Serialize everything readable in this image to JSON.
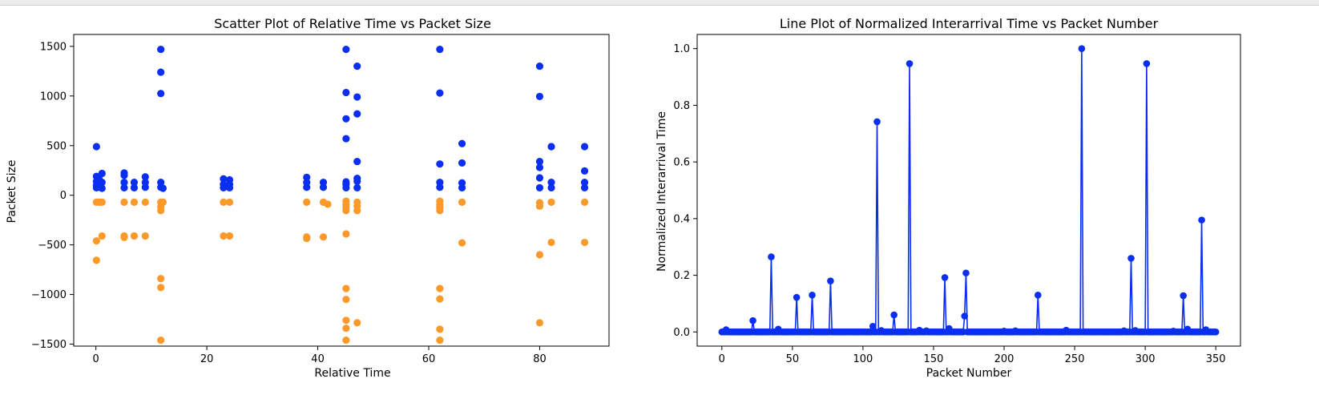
{
  "chart_data": [
    {
      "type": "scatter",
      "title": "Scatter Plot of Relative Time vs Packet Size",
      "xlabel": "Relative Time",
      "ylabel": "Packet Size",
      "xlim": [
        -4,
        92.5
      ],
      "ylim": [
        -1520,
        1620
      ],
      "xticks": [
        0,
        20,
        40,
        60,
        80
      ],
      "yticks": [
        -1500,
        -1000,
        -500,
        0,
        500,
        1000,
        1500
      ],
      "grid": false,
      "colors": {
        "positive": "#0a2ff0",
        "negative": "#fb9a2b"
      },
      "series": [
        {
          "color": "#0a2ff0",
          "points": [
            [
              0.1,
              490
            ],
            [
              0.1,
              190
            ],
            [
              0.1,
              140
            ],
            [
              0.1,
              100
            ],
            [
              0.1,
              75
            ],
            [
              0.6,
              160
            ],
            [
              0.6,
              80
            ],
            [
              1.1,
              220
            ],
            [
              1.1,
              130
            ],
            [
              1.1,
              70
            ],
            [
              5.1,
              225
            ],
            [
              5.1,
              200
            ],
            [
              5.1,
              130
            ],
            [
              5.1,
              75
            ],
            [
              6.9,
              130
            ],
            [
              6.9,
              75
            ],
            [
              8.9,
              185
            ],
            [
              8.9,
              130
            ],
            [
              8.9,
              80
            ],
            [
              11.7,
              1470
            ],
            [
              11.7,
              1240
            ],
            [
              11.7,
              1025
            ],
            [
              11.7,
              130
            ],
            [
              11.7,
              80
            ],
            [
              12.1,
              70
            ],
            [
              23.0,
              165
            ],
            [
              23.0,
              110
            ],
            [
              23.0,
              75
            ],
            [
              24.1,
              155
            ],
            [
              24.1,
              110
            ],
            [
              24.1,
              75
            ],
            [
              38.0,
              180
            ],
            [
              38.0,
              130
            ],
            [
              38.0,
              80
            ],
            [
              41.0,
              130
            ],
            [
              41.0,
              80
            ],
            [
              45.1,
              1470
            ],
            [
              45.1,
              1035
            ],
            [
              45.1,
              770
            ],
            [
              45.1,
              570
            ],
            [
              45.1,
              135
            ],
            [
              45.1,
              110
            ],
            [
              45.1,
              75
            ],
            [
              47.1,
              1300
            ],
            [
              47.1,
              990
            ],
            [
              47.1,
              820
            ],
            [
              47.1,
              340
            ],
            [
              47.1,
              170
            ],
            [
              47.1,
              140
            ],
            [
              47.1,
              75
            ],
            [
              62.0,
              1470
            ],
            [
              62.0,
              1030
            ],
            [
              62.0,
              315
            ],
            [
              62.0,
              130
            ],
            [
              62.0,
              80
            ],
            [
              66.0,
              520
            ],
            [
              66.0,
              325
            ],
            [
              66.0,
              125
            ],
            [
              66.0,
              75
            ],
            [
              80.0,
              1300
            ],
            [
              80.0,
              995
            ],
            [
              80.0,
              340
            ],
            [
              80.0,
              280
            ],
            [
              80.0,
              175
            ],
            [
              80.0,
              75
            ],
            [
              82.1,
              490
            ],
            [
              82.1,
              130
            ],
            [
              82.1,
              75
            ],
            [
              88.1,
              490
            ],
            [
              88.1,
              245
            ],
            [
              88.1,
              130
            ],
            [
              88.1,
              75
            ]
          ]
        },
        {
          "color": "#fb9a2b",
          "points": [
            [
              0.1,
              -70
            ],
            [
              0.1,
              -460
            ],
            [
              0.1,
              -655
            ],
            [
              0.6,
              -70
            ],
            [
              1.1,
              -70
            ],
            [
              1.1,
              -410
            ],
            [
              5.1,
              -70
            ],
            [
              5.1,
              -410
            ],
            [
              5.1,
              -425
            ],
            [
              6.9,
              -70
            ],
            [
              6.9,
              -410
            ],
            [
              8.9,
              -70
            ],
            [
              8.9,
              -410
            ],
            [
              11.7,
              -70
            ],
            [
              11.7,
              -115
            ],
            [
              11.7,
              -155
            ],
            [
              11.7,
              -840
            ],
            [
              11.7,
              -930
            ],
            [
              11.7,
              -1460
            ],
            [
              12.1,
              -70
            ],
            [
              23.0,
              -70
            ],
            [
              23.0,
              -410
            ],
            [
              24.1,
              -70
            ],
            [
              24.1,
              -410
            ],
            [
              38.0,
              -70
            ],
            [
              38.0,
              -420
            ],
            [
              38.0,
              -435
            ],
            [
              41.0,
              -70
            ],
            [
              41.0,
              -420
            ],
            [
              41.8,
              -90
            ],
            [
              45.1,
              -60
            ],
            [
              45.1,
              -95
            ],
            [
              45.1,
              -125
            ],
            [
              45.1,
              -155
            ],
            [
              45.1,
              -390
            ],
            [
              45.1,
              -940
            ],
            [
              45.1,
              -1050
            ],
            [
              45.1,
              -1260
            ],
            [
              45.1,
              -1340
            ],
            [
              45.1,
              -1460
            ],
            [
              47.1,
              -70
            ],
            [
              47.1,
              -110
            ],
            [
              47.1,
              -155
            ],
            [
              47.1,
              -1285
            ],
            [
              62.0,
              -60
            ],
            [
              62.0,
              -95
            ],
            [
              62.0,
              -125
            ],
            [
              62.0,
              -155
            ],
            [
              62.0,
              -940
            ],
            [
              62.0,
              -1045
            ],
            [
              62.0,
              -1350
            ],
            [
              62.0,
              -1460
            ],
            [
              66.0,
              -70
            ],
            [
              66.0,
              -480
            ],
            [
              80.0,
              -75
            ],
            [
              80.0,
              -110
            ],
            [
              80.0,
              -600
            ],
            [
              80.0,
              -1285
            ],
            [
              82.1,
              -70
            ],
            [
              82.1,
              -475
            ],
            [
              88.1,
              -70
            ],
            [
              88.1,
              -475
            ]
          ]
        }
      ]
    },
    {
      "type": "line",
      "title": "Line Plot of Normalized Interarrival Time vs Packet Number",
      "xlabel": "Packet Number",
      "ylabel": "Normalized Interarrival Time",
      "xlim": [
        -17.5,
        367.5
      ],
      "ylim": [
        -0.05,
        1.05
      ],
      "xticks": [
        0,
        50,
        100,
        150,
        200,
        250,
        300,
        350
      ],
      "yticks": [
        0.0,
        0.2,
        0.4,
        0.6,
        0.8,
        1.0
      ],
      "grid": false,
      "color": "#0a2ff0",
      "n_points": 351,
      "spikes": [
        [
          3,
          0.008
        ],
        [
          22,
          0.04
        ],
        [
          35,
          0.265
        ],
        [
          40,
          0.01
        ],
        [
          53,
          0.122
        ],
        [
          64,
          0.13
        ],
        [
          77,
          0.18
        ],
        [
          107,
          0.02
        ],
        [
          110,
          0.742
        ],
        [
          113,
          0.005
        ],
        [
          122,
          0.06
        ],
        [
          133,
          0.947
        ],
        [
          140,
          0.006
        ],
        [
          145,
          0.004
        ],
        [
          158,
          0.192
        ],
        [
          161,
          0.012
        ],
        [
          172,
          0.056
        ],
        [
          173,
          0.208
        ],
        [
          200,
          0.003
        ],
        [
          208,
          0.004
        ],
        [
          224,
          0.13
        ],
        [
          244,
          0.006
        ],
        [
          255,
          1.0
        ],
        [
          285,
          0.004
        ],
        [
          290,
          0.26
        ],
        [
          293,
          0.005
        ],
        [
          301,
          0.947
        ],
        [
          320,
          0.003
        ],
        [
          327,
          0.128
        ],
        [
          330,
          0.01
        ],
        [
          340,
          0.395
        ],
        [
          343,
          0.008
        ]
      ]
    }
  ]
}
